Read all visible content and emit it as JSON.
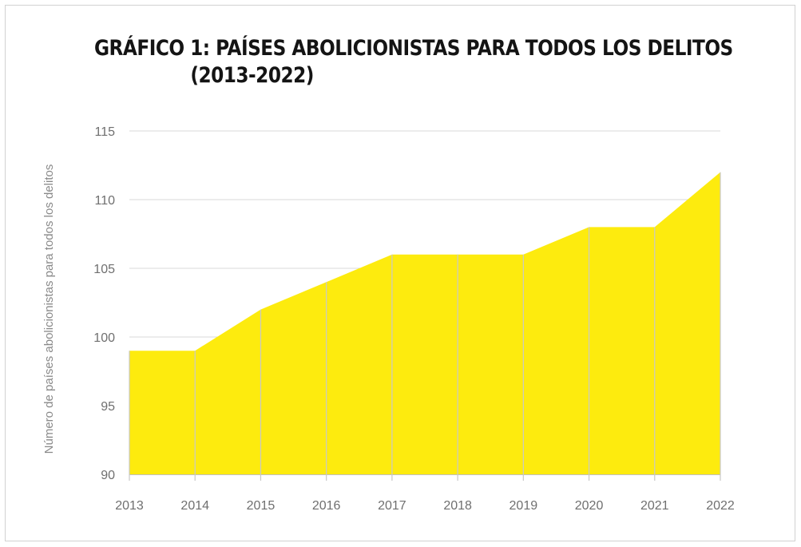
{
  "chart_data": {
    "type": "area",
    "title_line1": "GRÁFICO 1: PAÍSES ABOLICIONISTAS PARA TODOS LOS DELITOS",
    "title_line2": "(2013-2022)",
    "xlabel": "",
    "ylabel": "Número de países abolicionistas para todos los delitos",
    "x": [
      "2013",
      "2014",
      "2015",
      "2016",
      "2017",
      "2018",
      "2019",
      "2020",
      "2021",
      "2022"
    ],
    "series": [
      {
        "values": [
          99,
          99,
          102,
          104,
          106,
          106,
          106,
          108,
          108,
          112
        ],
        "color": "#fdeb0e"
      }
    ],
    "ylim": [
      90,
      115
    ],
    "yticks": [
      "90",
      "95",
      "100",
      "105",
      "110",
      "115"
    ],
    "grid": true,
    "legend": "none"
  }
}
